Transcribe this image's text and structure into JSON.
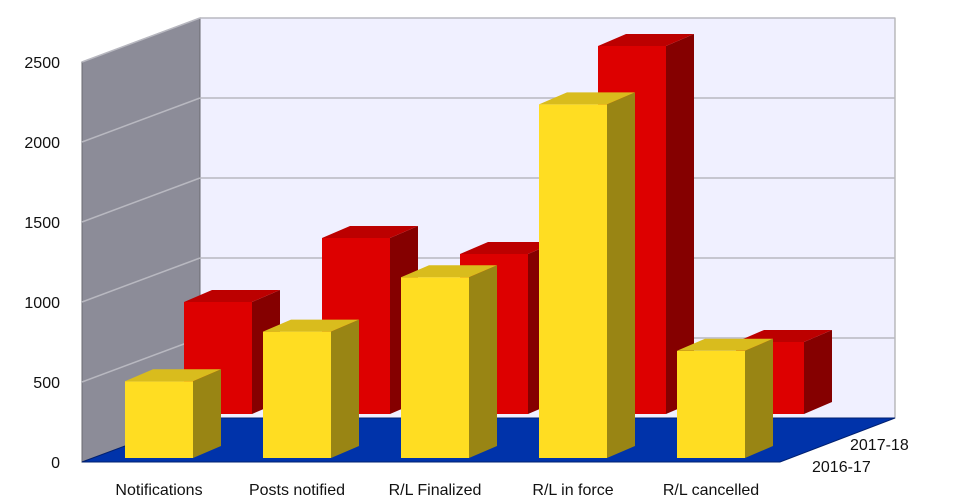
{
  "chart_data": {
    "type": "bar",
    "categories": [
      "Notifications",
      "Posts notified",
      "R/L Finalized",
      "R/L in force",
      "R/L cancelled"
    ],
    "series": [
      {
        "name": "2016-17",
        "values": [
          480,
          790,
          1130,
          2210,
          670
        ],
        "color": "#FFDD22"
      },
      {
        "name": "2017-18",
        "values": [
          700,
          1100,
          1000,
          2300,
          450
        ],
        "color": "#DD0000"
      }
    ],
    "ylim": [
      0,
      2500
    ],
    "yticks": [
      0,
      500,
      1000,
      1500,
      2000,
      2500
    ],
    "grid": true,
    "three_d": true,
    "wall_color": "#F0F0FF",
    "side_wall_color": "#8C8C98",
    "floor_color": "#0033AA",
    "legend_placement": "depth-axis-right"
  }
}
